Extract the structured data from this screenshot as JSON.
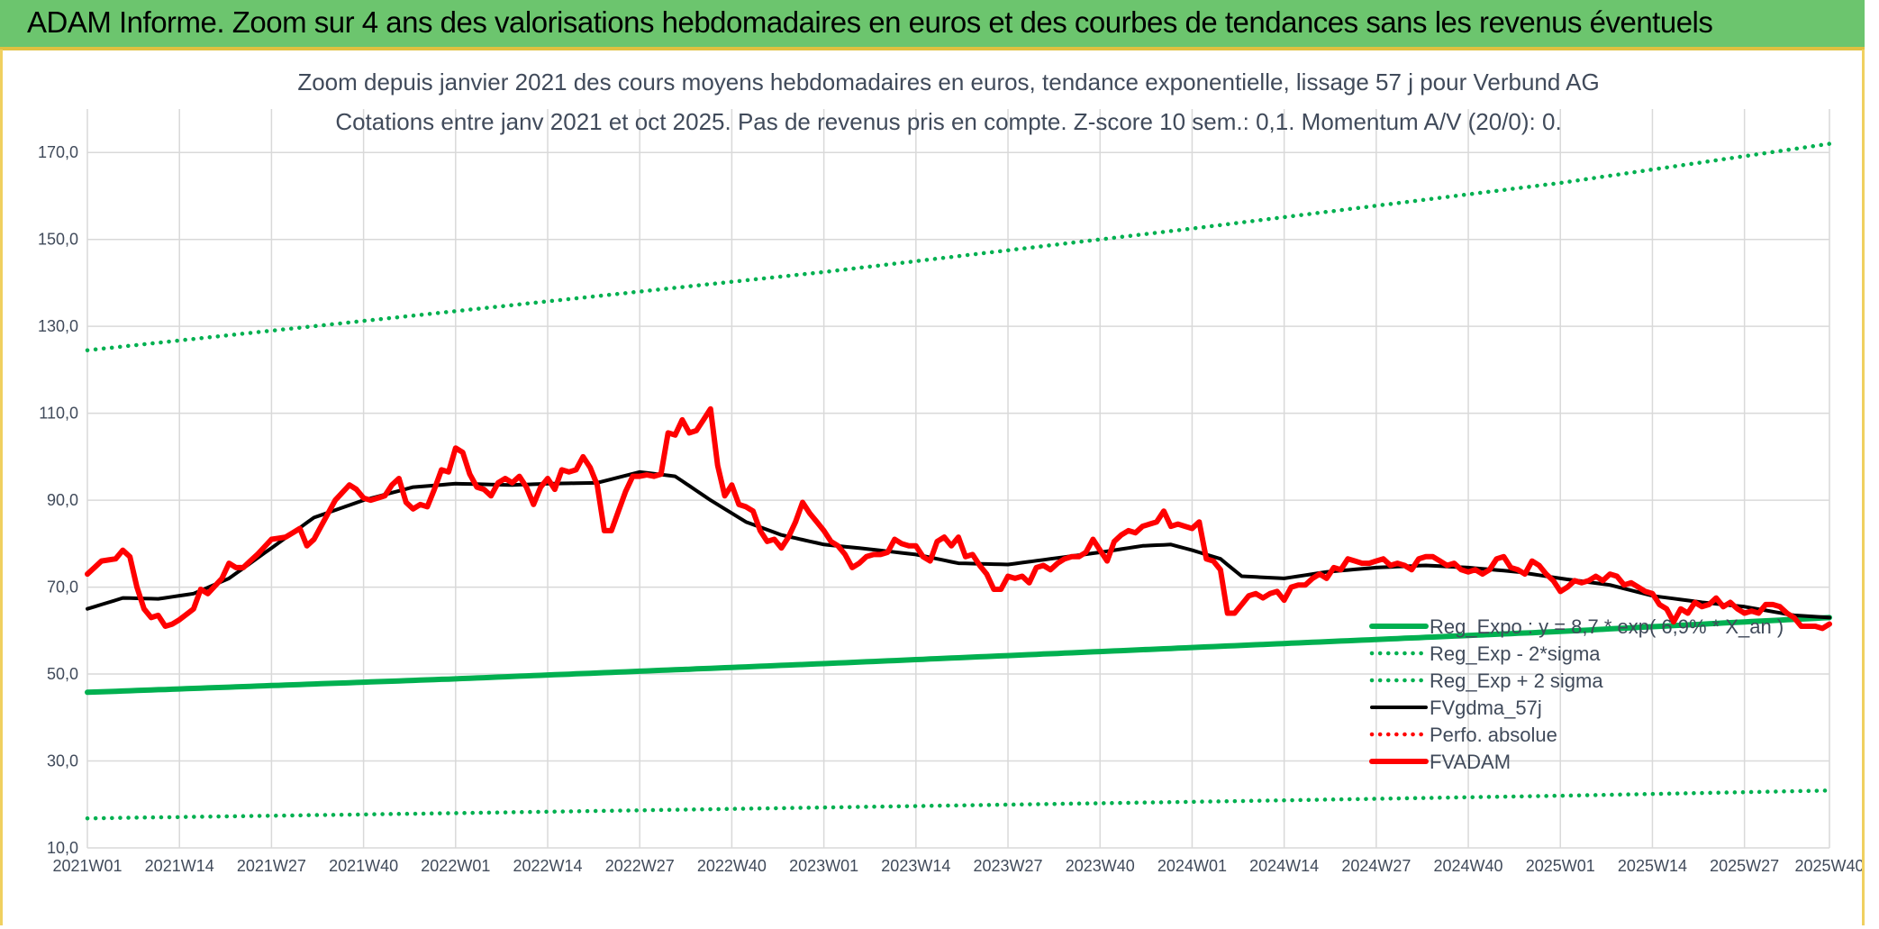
{
  "header": {
    "title": "ADAM Informe. Zoom sur 4 ans des valorisations hebdomadaires en euros et des courbes de tendances sans les revenus éventuels"
  },
  "colors": {
    "fvadam": "#ff0000",
    "fvgdma": "#000000",
    "reg": "#00b050",
    "perfo": "#ff0000",
    "grid": "#d9d9d9",
    "banner": "#6cc56e"
  },
  "chart_data": {
    "type": "line",
    "title": "Zoom depuis janvier 2021 des cours moyens hebdomadaires en euros, tendance exponentielle, lissage 57 j pour Verbund AG",
    "subtitle": "Cotations entre janv 2021 et oct 2025. Pas de revenus pris en compte. Z-score 10 sem.: 0,1. Momentum A/V (20/0): 0.",
    "xlabel": "",
    "ylabel": "",
    "ylim": [
      10,
      180
    ],
    "yticks": [
      10,
      30,
      50,
      70,
      90,
      110,
      130,
      150,
      170
    ],
    "ytick_labels": [
      "10,0",
      "30,0",
      "50,0",
      "70,0",
      "90,0",
      "110,0",
      "130,0",
      "150,0",
      "170,0"
    ],
    "xticks_index": [
      0,
      13,
      26,
      39,
      52,
      65,
      78,
      91,
      104,
      117,
      130,
      143,
      156,
      169,
      182,
      195,
      208,
      221,
      234,
      246
    ],
    "xtick_labels": [
      "2021W01",
      "2021W14",
      "2021W27",
      "2021W40",
      "2022W01",
      "2022W14",
      "2022W27",
      "2022W40",
      "2023W01",
      "2023W14",
      "2023W27",
      "2023W40",
      "2024W01",
      "2024W14",
      "2024W27",
      "2024W40",
      "2025W01",
      "2025W14",
      "2025W27",
      "2025W40"
    ],
    "n_weeks": 247,
    "legend_position": "right-bottom",
    "series": [
      {
        "name": "Reg_Expo : y = 8,7 * exp( 6,9% * X_an )",
        "style": "solid-thick",
        "color": "#00b050",
        "keypoints": [
          [
            0,
            45.8
          ],
          [
            52,
            48.9
          ],
          [
            104,
            52.4
          ],
          [
            156,
            56.1
          ],
          [
            208,
            59.8
          ],
          [
            246,
            63.0
          ]
        ]
      },
      {
        "name": "Reg_Exp - 2*sigma",
        "style": "dotted",
        "color": "#00b050",
        "keypoints": [
          [
            0,
            16.8
          ],
          [
            52,
            18.0
          ],
          [
            104,
            19.3
          ],
          [
            156,
            20.6
          ],
          [
            208,
            22.0
          ],
          [
            246,
            23.2
          ]
        ]
      },
      {
        "name": "Reg_Exp + 2 sigma",
        "style": "dotted",
        "color": "#00b050",
        "keypoints": [
          [
            0,
            124.5
          ],
          [
            52,
            133.5
          ],
          [
            104,
            142.5
          ],
          [
            156,
            152.5
          ],
          [
            208,
            163.0
          ],
          [
            246,
            172.0
          ]
        ]
      },
      {
        "name": "FVgdma_57j",
        "style": "solid",
        "color": "#000000",
        "keypoints": [
          [
            0,
            65
          ],
          [
            5,
            67.5
          ],
          [
            10,
            67.3
          ],
          [
            15,
            68.5
          ],
          [
            20,
            72
          ],
          [
            26,
            79
          ],
          [
            32,
            86
          ],
          [
            39,
            90
          ],
          [
            46,
            93
          ],
          [
            52,
            93.8
          ],
          [
            60,
            93.5
          ],
          [
            65,
            93.8
          ],
          [
            72,
            94
          ],
          [
            78,
            96.5
          ],
          [
            83,
            95.5
          ],
          [
            88,
            90
          ],
          [
            93,
            85
          ],
          [
            98,
            82
          ],
          [
            104,
            79.8
          ],
          [
            110,
            78.8
          ],
          [
            117,
            77.5
          ],
          [
            123,
            75.5
          ],
          [
            130,
            75.2
          ],
          [
            136,
            76.5
          ],
          [
            143,
            78
          ],
          [
            149,
            79.5
          ],
          [
            153,
            79.8
          ],
          [
            156,
            78.5
          ],
          [
            160,
            76.5
          ],
          [
            163,
            72.5
          ],
          [
            169,
            72
          ],
          [
            175,
            73.5
          ],
          [
            182,
            74.5
          ],
          [
            189,
            75
          ],
          [
            195,
            74.5
          ],
          [
            202,
            73.5
          ],
          [
            208,
            72
          ],
          [
            215,
            70.5
          ],
          [
            221,
            68
          ],
          [
            228,
            66.5
          ],
          [
            234,
            65.5
          ],
          [
            241,
            63.5
          ],
          [
            246,
            63
          ]
        ]
      },
      {
        "name": "Perfo. absolue",
        "style": "dotted",
        "color": "#ff0000",
        "keypoints": []
      },
      {
        "name": "FVADAM",
        "style": "solid-thick",
        "color": "#ff0000",
        "keypoints": [
          [
            0,
            73
          ],
          [
            2,
            76
          ],
          [
            4,
            76.5
          ],
          [
            5,
            78.5
          ],
          [
            6,
            77
          ],
          [
            7,
            70
          ],
          [
            8,
            65
          ],
          [
            9,
            63
          ],
          [
            10,
            63.5
          ],
          [
            11,
            61
          ],
          [
            12,
            61.5
          ],
          [
            13,
            62.5
          ],
          [
            15,
            65
          ],
          [
            16,
            69.5
          ],
          [
            17,
            68.5
          ],
          [
            19,
            72
          ],
          [
            20,
            75.5
          ],
          [
            21,
            74.5
          ],
          [
            22,
            74.5
          ],
          [
            24,
            77.5
          ],
          [
            26,
            81
          ],
          [
            28,
            81.5
          ],
          [
            30,
            83.5
          ],
          [
            31,
            79.5
          ],
          [
            32,
            81
          ],
          [
            33,
            84
          ],
          [
            35,
            90
          ],
          [
            37,
            93.5
          ],
          [
            38,
            92.5
          ],
          [
            39,
            90.5
          ],
          [
            40,
            90
          ],
          [
            42,
            91
          ],
          [
            43,
            93.5
          ],
          [
            44,
            95
          ],
          [
            45,
            89.5
          ],
          [
            46,
            88
          ],
          [
            47,
            89
          ],
          [
            48,
            88.5
          ],
          [
            49,
            92.5
          ],
          [
            50,
            97
          ],
          [
            51,
            96.5
          ],
          [
            52,
            102
          ],
          [
            53,
            101
          ],
          [
            54,
            96
          ],
          [
            55,
            93
          ],
          [
            56,
            92.5
          ],
          [
            57,
            91
          ],
          [
            58,
            94
          ],
          [
            59,
            95
          ],
          [
            60,
            94
          ],
          [
            61,
            95.5
          ],
          [
            62,
            93
          ],
          [
            63,
            89
          ],
          [
            64,
            93
          ],
          [
            65,
            95
          ],
          [
            66,
            92.5
          ],
          [
            67,
            97
          ],
          [
            68,
            96.5
          ],
          [
            69,
            97
          ],
          [
            70,
            100
          ],
          [
            71,
            97.5
          ],
          [
            72,
            93.5
          ],
          [
            73,
            83
          ],
          [
            74,
            83
          ],
          [
            75,
            87.5
          ],
          [
            76,
            92
          ],
          [
            77,
            95.5
          ],
          [
            78,
            95.5
          ],
          [
            79,
            95.8
          ],
          [
            80,
            95.5
          ],
          [
            81,
            96
          ],
          [
            82,
            105.5
          ],
          [
            83,
            105
          ],
          [
            84,
            108.5
          ],
          [
            85,
            105.5
          ],
          [
            86,
            106
          ],
          [
            87,
            108.5
          ],
          [
            88,
            111
          ],
          [
            89,
            98
          ],
          [
            90,
            91
          ],
          [
            91,
            93.5
          ],
          [
            92,
            89
          ],
          [
            93,
            88.5
          ],
          [
            94,
            87.5
          ],
          [
            95,
            83
          ],
          [
            96,
            80.5
          ],
          [
            97,
            81
          ],
          [
            98,
            79
          ],
          [
            99,
            81.5
          ],
          [
            100,
            85
          ],
          [
            101,
            89.5
          ],
          [
            102,
            87
          ],
          [
            103,
            85
          ],
          [
            104,
            83
          ],
          [
            105,
            80.5
          ],
          [
            106,
            79.5
          ],
          [
            107,
            77.5
          ],
          [
            108,
            74.5
          ],
          [
            109,
            75.5
          ],
          [
            110,
            77
          ],
          [
            111,
            77.5
          ],
          [
            112,
            77.5
          ],
          [
            113,
            78
          ],
          [
            114,
            81
          ],
          [
            115,
            80
          ],
          [
            116,
            79.5
          ],
          [
            117,
            79.5
          ],
          [
            118,
            77
          ],
          [
            119,
            76
          ],
          [
            120,
            80.5
          ],
          [
            121,
            81.5
          ],
          [
            122,
            79.5
          ],
          [
            123,
            81.5
          ],
          [
            124,
            77
          ],
          [
            125,
            77.5
          ],
          [
            126,
            75
          ],
          [
            127,
            73
          ],
          [
            128,
            69.5
          ],
          [
            129,
            69.5
          ],
          [
            130,
            72.5
          ],
          [
            131,
            72
          ],
          [
            132,
            72.5
          ],
          [
            133,
            71
          ],
          [
            134,
            74.5
          ],
          [
            135,
            75
          ],
          [
            136,
            74
          ],
          [
            137,
            75.5
          ],
          [
            138,
            76.5
          ],
          [
            139,
            77
          ],
          [
            140,
            77
          ],
          [
            141,
            78
          ],
          [
            142,
            81
          ],
          [
            143,
            78.5
          ],
          [
            144,
            76
          ],
          [
            145,
            80.5
          ],
          [
            146,
            82
          ],
          [
            147,
            83
          ],
          [
            148,
            82.5
          ],
          [
            149,
            84
          ],
          [
            150,
            84.5
          ],
          [
            151,
            85
          ],
          [
            152,
            87.5
          ],
          [
            153,
            84
          ],
          [
            154,
            84.5
          ],
          [
            155,
            84
          ],
          [
            156,
            83.5
          ],
          [
            157,
            85
          ],
          [
            158,
            76.5
          ],
          [
            159,
            76
          ],
          [
            160,
            74
          ],
          [
            161,
            64
          ],
          [
            162,
            64
          ],
          [
            163,
            66
          ],
          [
            164,
            68
          ],
          [
            165,
            68.5
          ],
          [
            166,
            67.5
          ],
          [
            167,
            68.5
          ],
          [
            168,
            69
          ],
          [
            169,
            67
          ],
          [
            170,
            70
          ],
          [
            171,
            70.5
          ],
          [
            172,
            70.5
          ],
          [
            173,
            72
          ],
          [
            174,
            73
          ],
          [
            175,
            72
          ],
          [
            176,
            74.5
          ],
          [
            177,
            74
          ],
          [
            178,
            76.5
          ],
          [
            179,
            76
          ],
          [
            180,
            75.5
          ],
          [
            181,
            75.5
          ],
          [
            182,
            76
          ],
          [
            183,
            76.5
          ],
          [
            184,
            75
          ],
          [
            185,
            75.5
          ],
          [
            186,
            75
          ],
          [
            187,
            74
          ],
          [
            188,
            76.5
          ],
          [
            189,
            77
          ],
          [
            190,
            77
          ],
          [
            191,
            76
          ],
          [
            192,
            75
          ],
          [
            193,
            75.5
          ],
          [
            194,
            74
          ],
          [
            195,
            73.5
          ],
          [
            196,
            74
          ],
          [
            197,
            73
          ],
          [
            198,
            74
          ],
          [
            199,
            76.5
          ],
          [
            200,
            77
          ],
          [
            201,
            74.5
          ],
          [
            202,
            74
          ],
          [
            203,
            73
          ],
          [
            204,
            76
          ],
          [
            205,
            75
          ],
          [
            206,
            73
          ],
          [
            207,
            71.5
          ],
          [
            208,
            69
          ],
          [
            209,
            70
          ],
          [
            210,
            71.5
          ],
          [
            211,
            71
          ],
          [
            212,
            71.5
          ],
          [
            213,
            72.5
          ],
          [
            214,
            71.5
          ],
          [
            215,
            73
          ],
          [
            216,
            72.5
          ],
          [
            217,
            70.5
          ],
          [
            218,
            71
          ],
          [
            219,
            70
          ],
          [
            220,
            69
          ],
          [
            221,
            68.5
          ],
          [
            222,
            66
          ],
          [
            223,
            65
          ],
          [
            224,
            62
          ],
          [
            225,
            65
          ],
          [
            226,
            64
          ],
          [
            227,
            66.5
          ],
          [
            228,
            65.5
          ],
          [
            229,
            66
          ],
          [
            230,
            67.5
          ],
          [
            231,
            65.5
          ],
          [
            232,
            66.5
          ],
          [
            233,
            65
          ],
          [
            234,
            64
          ],
          [
            235,
            64.5
          ],
          [
            236,
            64
          ],
          [
            237,
            66
          ],
          [
            238,
            66
          ],
          [
            239,
            65.5
          ],
          [
            240,
            64
          ],
          [
            241,
            63
          ],
          [
            242,
            61
          ],
          [
            243,
            61
          ],
          [
            244,
            61
          ],
          [
            245,
            60.5
          ],
          [
            246,
            61.5
          ]
        ]
      }
    ]
  }
}
